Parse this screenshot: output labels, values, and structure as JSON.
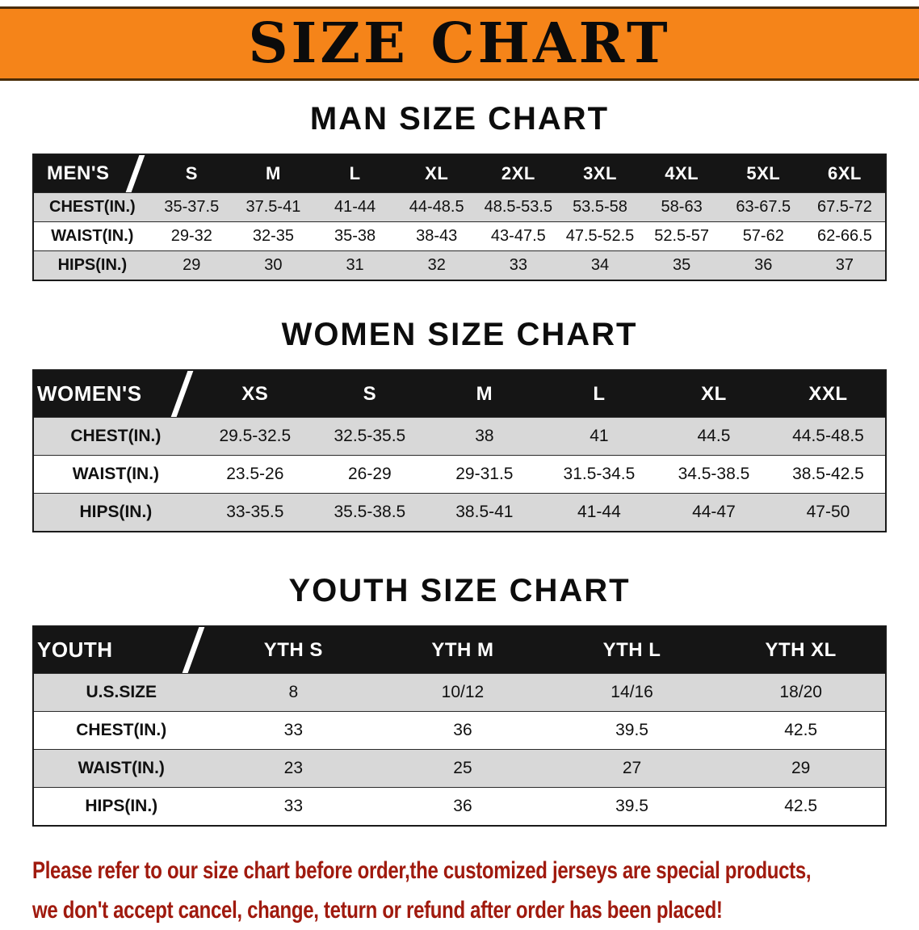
{
  "banner": {
    "title": "SIZE CHART"
  },
  "colors": {
    "banner_bg": "#f58419",
    "banner_border": "#4a2c08",
    "header_bg": "#151515",
    "header_text": "#ffffff",
    "row_alt_bg": "#d8d8d8",
    "table_border": "#1a1a1a",
    "text": "#111111",
    "disclaimer_text": "#a01a0e"
  },
  "tables": [
    {
      "id": "men",
      "heading": "MAN SIZE CHART",
      "corner": "MEN'S",
      "columns": [
        "S",
        "M",
        "L",
        "XL",
        "2XL",
        "3XL",
        "4XL",
        "5XL",
        "6XL"
      ],
      "rows": [
        {
          "label": "CHEST(IN.)",
          "values": [
            "35-37.5",
            "37.5-41",
            "41-44",
            "44-48.5",
            "48.5-53.5",
            "53.5-58",
            "58-63",
            "63-67.5",
            "67.5-72"
          ]
        },
        {
          "label": "WAIST(IN.)",
          "values": [
            "29-32",
            "32-35",
            "35-38",
            "38-43",
            "43-47.5",
            "47.5-52.5",
            "52.5-57",
            "57-62",
            "62-66.5"
          ]
        },
        {
          "label": "HIPS(IN.)",
          "values": [
            "29",
            "30",
            "31",
            "32",
            "33",
            "34",
            "35",
            "36",
            "37"
          ]
        }
      ]
    },
    {
      "id": "women",
      "heading": "WOMEN SIZE CHART",
      "corner": "WOMEN'S",
      "columns": [
        "XS",
        "S",
        "M",
        "L",
        "XL",
        "XXL"
      ],
      "rows": [
        {
          "label": "CHEST(IN.)",
          "values": [
            "29.5-32.5",
            "32.5-35.5",
            "38",
            "41",
            "44.5",
            "44.5-48.5"
          ]
        },
        {
          "label": "WAIST(IN.)",
          "values": [
            "23.5-26",
            "26-29",
            "29-31.5",
            "31.5-34.5",
            "34.5-38.5",
            "38.5-42.5"
          ]
        },
        {
          "label": "HIPS(IN.)",
          "values": [
            "33-35.5",
            "35.5-38.5",
            "38.5-41",
            "41-44",
            "44-47",
            "47-50"
          ]
        }
      ]
    },
    {
      "id": "youth",
      "heading": "YOUTH SIZE CHART",
      "corner": "YOUTH",
      "columns": [
        "YTH S",
        "YTH M",
        "YTH L",
        "YTH XL"
      ],
      "rows": [
        {
          "label": "U.S.SIZE",
          "values": [
            "8",
            "10/12",
            "14/16",
            "18/20"
          ]
        },
        {
          "label": "CHEST(IN.)",
          "values": [
            "33",
            "36",
            "39.5",
            "42.5"
          ]
        },
        {
          "label": "WAIST(IN.)",
          "values": [
            "23",
            "25",
            "27",
            "29"
          ]
        },
        {
          "label": "HIPS(IN.)",
          "values": [
            "33",
            "36",
            "39.5",
            "42.5"
          ]
        }
      ]
    }
  ],
  "disclaimer": {
    "line1": "Please refer to our size chart before order,the customized jerseys are special products,",
    "line2": "we don't accept cancel, change, teturn or refund after order has been placed!"
  }
}
